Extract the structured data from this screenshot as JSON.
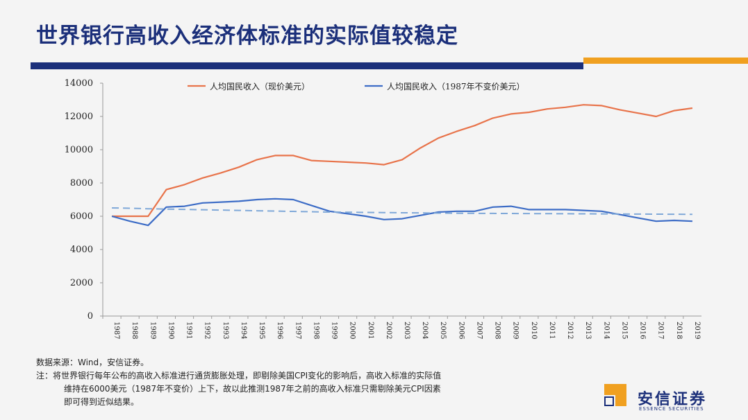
{
  "page": {
    "title": "世界银行高收入经济体标准的实际值较稳定",
    "accent_blue": "#1b2f7a",
    "accent_orange": "#f0a020"
  },
  "chart_data": {
    "type": "line",
    "categories": [
      "1987",
      "1988",
      "1989",
      "1990",
      "1991",
      "1992",
      "1993",
      "1994",
      "1995",
      "1996",
      "1997",
      "1998",
      "1999",
      "2000",
      "2001",
      "2002",
      "2003",
      "2004",
      "2005",
      "2006",
      "2007",
      "2008",
      "2009",
      "2010",
      "2011",
      "2012",
      "2013",
      "2014",
      "2015",
      "2016",
      "2017",
      "2018",
      "2019"
    ],
    "series": [
      {
        "name": "人均国民收入（现价美元）",
        "color": "#e8734a",
        "style": "solid",
        "values": [
          6000,
          6000,
          6000,
          7600,
          7900,
          8300,
          8600,
          8950,
          9400,
          9650,
          9650,
          9350,
          9300,
          9250,
          9200,
          9100,
          9400,
          10100,
          10700,
          11100,
          11450,
          11900,
          12150,
          12250,
          12450,
          12550,
          12700,
          12650,
          12400,
          12200,
          12000,
          12350,
          12500
        ]
      },
      {
        "name": "人均国民收入（1987年不变价美元）",
        "color": "#3c6cc6",
        "style": "solid",
        "values": [
          6000,
          5700,
          5450,
          6550,
          6600,
          6800,
          6850,
          6900,
          7000,
          7050,
          7000,
          6650,
          6300,
          6150,
          6000,
          5800,
          5850,
          6050,
          6250,
          6300,
          6300,
          6550,
          6600,
          6400,
          6400,
          6400,
          6350,
          6300,
          6100,
          5900,
          5700,
          5750,
          5700
        ]
      },
      {
        "style": "dashed",
        "color": "#7fa8d8",
        "values": [
          6500,
          6480,
          6450,
          6430,
          6410,
          6390,
          6370,
          6350,
          6330,
          6310,
          6290,
          6270,
          6250,
          6240,
          6230,
          6220,
          6210,
          6200,
          6190,
          6180,
          6175,
          6170,
          6165,
          6160,
          6155,
          6150,
          6145,
          6140,
          6135,
          6130,
          6125,
          6120,
          6115
        ]
      }
    ],
    "ylim": [
      0,
      14000
    ],
    "yticks": [
      "14000",
      "12000",
      "10000",
      "8000",
      "6000",
      "4000",
      "2000",
      "0"
    ],
    "legend_position": "top"
  },
  "notes": {
    "source": "数据来源：Wind，安信证券。",
    "line1": "注：将世界银行每年公布的高收入标准进行通货膨胀处理，即剔除美国CPI变化的影响后，高收入标准的实际值",
    "line2": "维持在6000美元（1987年不变价）上下，故以此推测1987年之前的高收入标准只需剔除美元CPI因素",
    "line3": "即可得到近似结果。"
  },
  "logo": {
    "cn": "安信证券",
    "en": "ESSENCE SECURITIES"
  }
}
